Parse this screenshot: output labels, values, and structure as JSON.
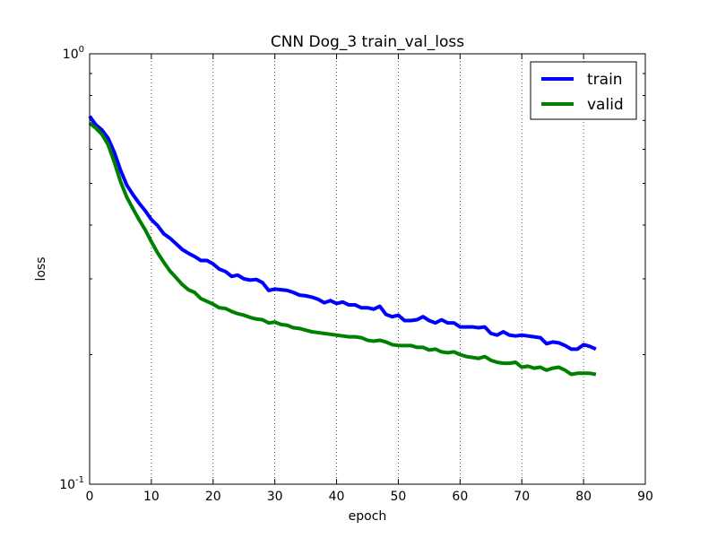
{
  "chart_data": {
    "type": "line",
    "title": "CNN Dog_3 train_val_loss",
    "xlabel": "epoch",
    "ylabel": "loss",
    "xlim": [
      0,
      90
    ],
    "ylim": [
      0.1,
      1.0
    ],
    "yscale": "log",
    "x_ticks": [
      "0",
      "10",
      "20",
      "30",
      "40",
      "50",
      "60",
      "70",
      "80",
      "90"
    ],
    "y_tick_base": "10",
    "y_ticks": [
      {
        "base": "10",
        "exp": "0",
        "value": 1.0
      },
      {
        "base": "10",
        "exp": "-1",
        "value": 0.1
      }
    ],
    "grid": "vertical-dotted",
    "legend_position": "top-right",
    "series": [
      {
        "name": "train",
        "color": "#0000ff",
        "x": [
          0,
          1,
          2,
          3,
          4,
          5,
          6,
          7,
          8,
          9,
          10,
          11,
          12,
          13,
          14,
          15,
          16,
          17,
          18,
          19,
          20,
          21,
          22,
          23,
          24,
          25,
          26,
          27,
          28,
          29,
          30,
          31,
          32,
          33,
          34,
          35,
          36,
          37,
          38,
          39,
          40,
          41,
          42,
          43,
          44,
          45,
          46,
          47,
          48,
          49,
          50,
          51,
          52,
          53,
          54,
          55,
          56,
          57,
          58,
          59,
          60,
          61,
          62,
          63,
          64,
          65,
          66,
          67,
          68,
          69,
          70,
          71,
          72,
          73,
          74,
          75,
          76,
          77,
          78,
          79,
          80,
          81,
          82
        ],
        "values": [
          0.716,
          0.684,
          0.665,
          0.636,
          0.59,
          0.537,
          0.496,
          0.471,
          0.45,
          0.432,
          0.412,
          0.399,
          0.382,
          0.373,
          0.362,
          0.351,
          0.344,
          0.338,
          0.331,
          0.331,
          0.325,
          0.316,
          0.312,
          0.304,
          0.306,
          0.3,
          0.298,
          0.299,
          0.294,
          0.282,
          0.284,
          0.283,
          0.282,
          0.279,
          0.275,
          0.274,
          0.272,
          0.269,
          0.264,
          0.267,
          0.263,
          0.265,
          0.261,
          0.261,
          0.257,
          0.257,
          0.255,
          0.259,
          0.248,
          0.245,
          0.247,
          0.24,
          0.24,
          0.241,
          0.245,
          0.24,
          0.237,
          0.241,
          0.237,
          0.237,
          0.232,
          0.232,
          0.232,
          0.231,
          0.232,
          0.224,
          0.222,
          0.226,
          0.222,
          0.221,
          0.222,
          0.221,
          0.22,
          0.219,
          0.212,
          0.214,
          0.213,
          0.21,
          0.206,
          0.206,
          0.211,
          0.209,
          0.206
        ]
      },
      {
        "name": "valid",
        "color": "#008000",
        "x": [
          0,
          1,
          2,
          3,
          4,
          5,
          6,
          7,
          8,
          9,
          10,
          11,
          12,
          13,
          14,
          15,
          16,
          17,
          18,
          19,
          20,
          21,
          22,
          23,
          24,
          25,
          26,
          27,
          28,
          29,
          30,
          31,
          32,
          33,
          34,
          35,
          36,
          37,
          38,
          39,
          40,
          41,
          42,
          43,
          44,
          45,
          46,
          47,
          48,
          49,
          50,
          51,
          52,
          53,
          54,
          55,
          56,
          57,
          58,
          59,
          60,
          61,
          62,
          63,
          64,
          65,
          66,
          67,
          68,
          69,
          70,
          71,
          72,
          73,
          74,
          75,
          76,
          77,
          78,
          79,
          80,
          81,
          82
        ],
        "values": [
          0.69,
          0.672,
          0.65,
          0.615,
          0.56,
          0.505,
          0.465,
          0.437,
          0.412,
          0.39,
          0.366,
          0.345,
          0.328,
          0.313,
          0.302,
          0.291,
          0.283,
          0.279,
          0.27,
          0.266,
          0.262,
          0.257,
          0.256,
          0.252,
          0.249,
          0.247,
          0.244,
          0.242,
          0.241,
          0.237,
          0.238,
          0.235,
          0.234,
          0.231,
          0.23,
          0.228,
          0.226,
          0.225,
          0.224,
          0.223,
          0.222,
          0.221,
          0.22,
          0.22,
          0.219,
          0.216,
          0.215,
          0.216,
          0.214,
          0.211,
          0.21,
          0.21,
          0.21,
          0.208,
          0.208,
          0.205,
          0.206,
          0.203,
          0.202,
          0.203,
          0.2,
          0.198,
          0.197,
          0.196,
          0.198,
          0.194,
          0.192,
          0.191,
          0.191,
          0.192,
          0.187,
          0.188,
          0.186,
          0.187,
          0.184,
          0.186,
          0.187,
          0.184,
          0.18,
          0.181,
          0.181,
          0.181,
          0.18
        ]
      }
    ]
  }
}
